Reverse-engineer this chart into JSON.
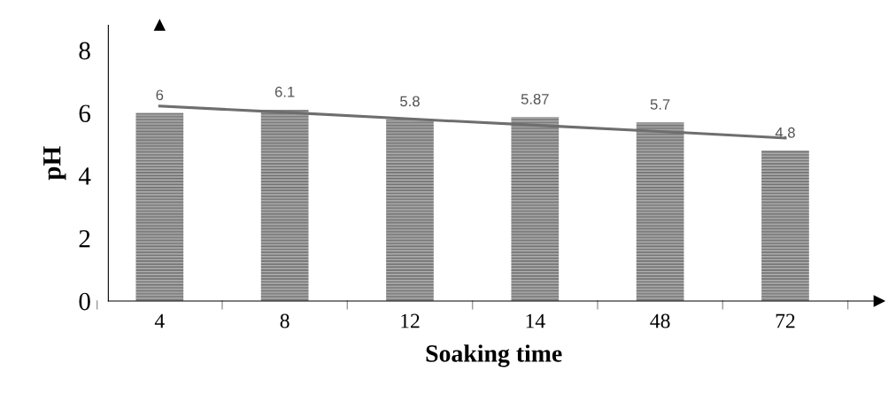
{
  "chart_data": {
    "type": "bar",
    "xlabel": "Soaking time",
    "ylabel": "pH",
    "categories": [
      "4",
      "8",
      "12",
      "14",
      "48",
      "72"
    ],
    "series": [
      {
        "color": "#b0b0b0",
        "values": [
          6,
          6.1,
          5.8,
          5.87,
          5.7,
          4.8
        ],
        "value_labels": [
          "6",
          "6.1",
          "5.8",
          "5.87",
          "5.7",
          "4.8"
        ]
      },
      {
        "type": "line",
        "color": "#6e6e6e",
        "values": [
          6.22,
          6.02,
          5.81,
          5.61,
          5.41,
          5.2
        ]
      }
    ],
    "ylim": [
      0,
      8.8
    ],
    "yticks": [
      0,
      2,
      4,
      6,
      8
    ],
    "grid": false,
    "legend": false
  }
}
